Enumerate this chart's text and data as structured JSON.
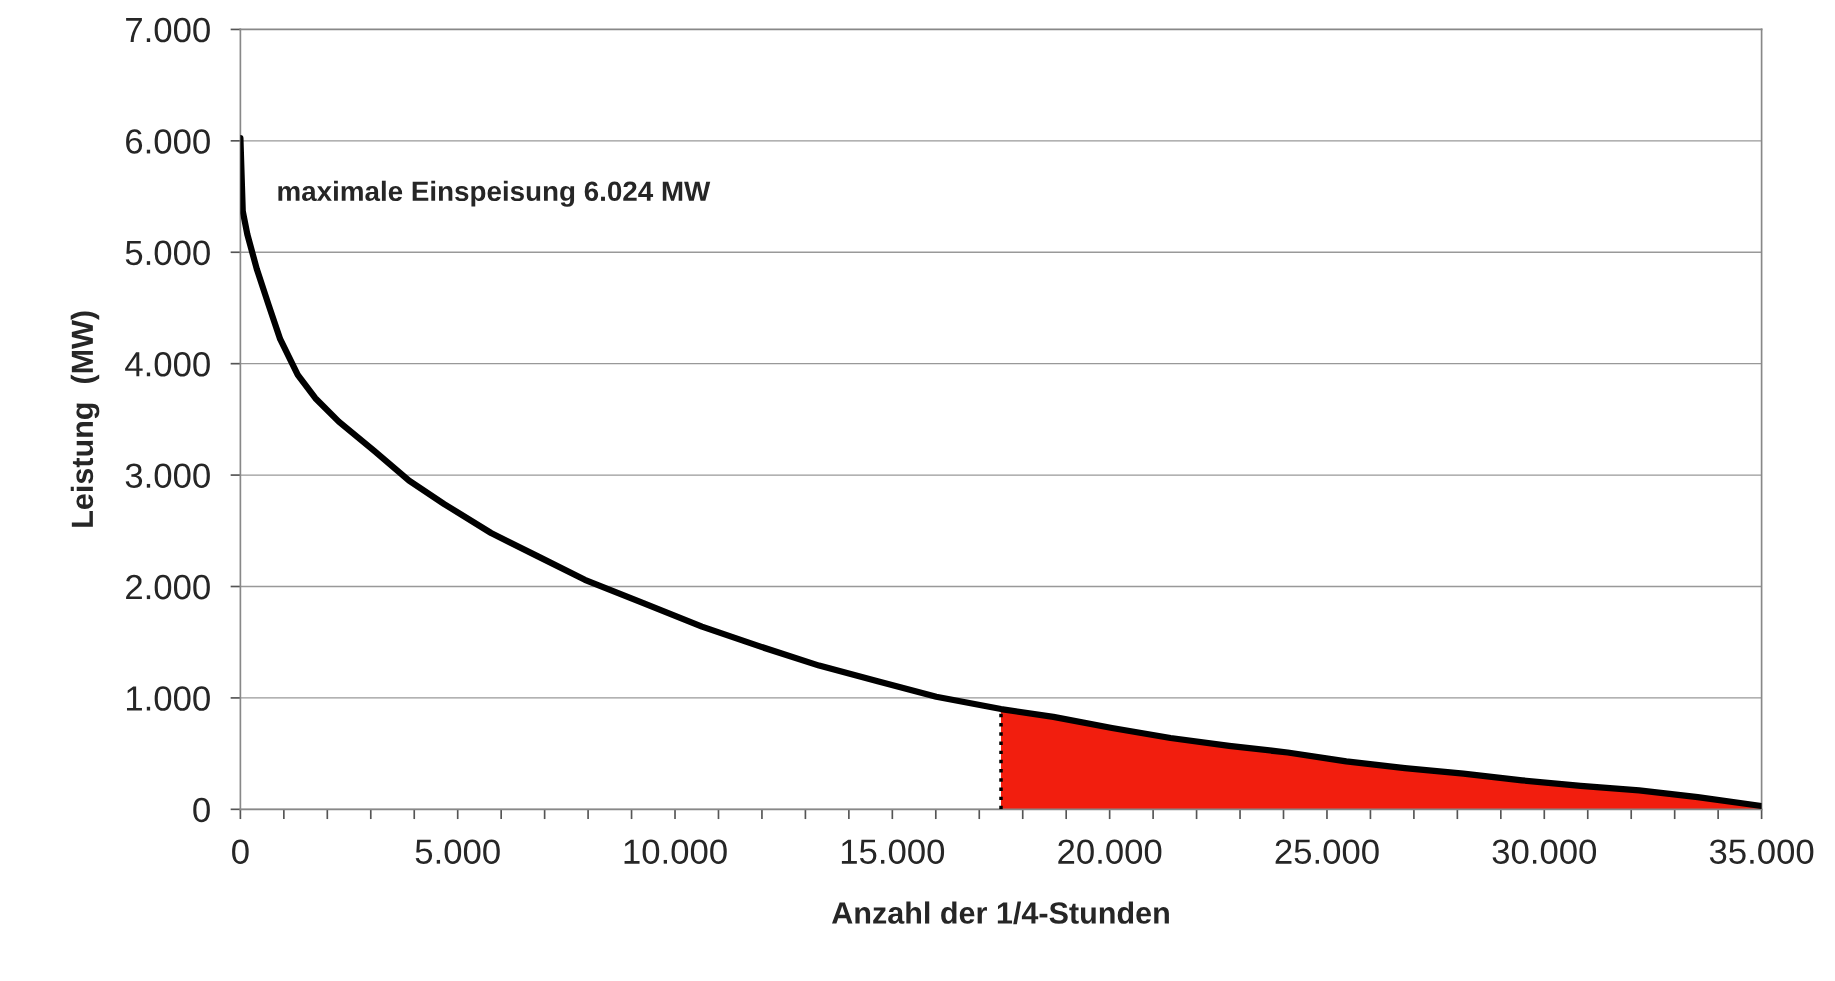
{
  "chart_data": {
    "type": "line",
    "xlabel": "Anzahl der 1/4-Stunden",
    "ylabel": "Leistung  (MW)",
    "annotations": [
      {
        "text": "maximale Einspeisung 6.024 MW",
        "x": 0,
        "y": 6024
      }
    ],
    "series": [
      {
        "type": "area",
        "color": "#f21e0e",
        "x": [
          17500,
          18706,
          20054,
          21402,
          22749,
          24097,
          25445,
          26792,
          28140,
          29488,
          30836,
          32183,
          33531,
          35000
        ],
        "values": [
          900,
          830,
          730,
          640,
          570,
          510,
          430,
          370,
          320,
          260,
          210,
          170,
          110,
          30
        ]
      },
      {
        "color": "#000000",
        "line_style": "solid",
        "x": [
          0,
          54,
          160,
          377,
          647,
          916,
          1320,
          1725,
          2264,
          3073,
          3881,
          4690,
          5768,
          6846,
          7925,
          9272,
          10620,
          11968,
          13315,
          14663,
          16011,
          17500,
          18706,
          20054,
          21402,
          22749,
          24097,
          25445,
          26792,
          28140,
          29488,
          30836,
          32183,
          33531,
          35000
        ],
        "values": [
          6024,
          5370,
          5160,
          4850,
          4530,
          4220,
          3900,
          3690,
          3480,
          3220,
          2950,
          2740,
          2480,
          2270,
          2060,
          1850,
          1640,
          1460,
          1290,
          1150,
          1010,
          900,
          830,
          730,
          640,
          570,
          510,
          430,
          370,
          320,
          260,
          210,
          170,
          110,
          30
        ]
      },
      {
        "color": "#000000",
        "line_style": "dotted",
        "x": [
          17500,
          17500
        ],
        "values": [
          0,
          900
        ]
      }
    ],
    "xlim": [
      0,
      35000
    ],
    "ylim": [
      0,
      7000
    ],
    "xticks": [
      0,
      {
        "value": 1000,
        "label": null
      },
      {
        "value": 2000,
        "label": null
      },
      {
        "value": 3000,
        "label": null
      },
      {
        "value": 4000,
        "label": null
      },
      {
        "value": 5000,
        "label": "5.000"
      },
      {
        "value": 6000,
        "label": null
      },
      {
        "value": 7000,
        "label": null
      },
      {
        "value": 8000,
        "label": null
      },
      {
        "value": 9000,
        "label": null
      },
      {
        "value": 10000,
        "label": "10.000"
      },
      {
        "value": 11000,
        "label": null
      },
      {
        "value": 12000,
        "label": null
      },
      {
        "value": 13000,
        "label": null
      },
      {
        "value": 14000,
        "label": null
      },
      {
        "value": 15000,
        "label": "15.000"
      },
      {
        "value": 16000,
        "label": null
      },
      {
        "value": 17000,
        "label": null
      },
      {
        "value": 18000,
        "label": null
      },
      {
        "value": 19000,
        "label": null
      },
      {
        "value": 20000,
        "label": "20.000"
      },
      {
        "value": 21000,
        "label": null
      },
      {
        "value": 22000,
        "label": null
      },
      {
        "value": 23000,
        "label": null
      },
      {
        "value": 24000,
        "label": null
      },
      {
        "value": 25000,
        "label": "25.000"
      },
      {
        "value": 26000,
        "label": null
      },
      {
        "value": 27000,
        "label": null
      },
      {
        "value": 28000,
        "label": null
      },
      {
        "value": 29000,
        "label": null
      },
      {
        "value": 30000,
        "label": "30.000"
      },
      {
        "value": 31000,
        "label": null
      },
      {
        "value": 32000,
        "label": null
      },
      {
        "value": 33000,
        "label": null
      },
      {
        "value": 34000,
        "label": null
      },
      {
        "value": 35000,
        "label": "35.000"
      }
    ],
    "yticks": [
      0,
      {
        "value": 1000,
        "label": "1.000"
      },
      {
        "value": 2000,
        "label": "2.000"
      },
      {
        "value": 3000,
        "label": "3.000"
      },
      {
        "value": 4000,
        "label": "4.000"
      },
      {
        "value": 5000,
        "label": "5.000"
      },
      {
        "value": 6000,
        "label": "6.000"
      },
      {
        "value": 7000,
        "label": "7.000"
      }
    ],
    "grid": "y",
    "legend": false
  }
}
